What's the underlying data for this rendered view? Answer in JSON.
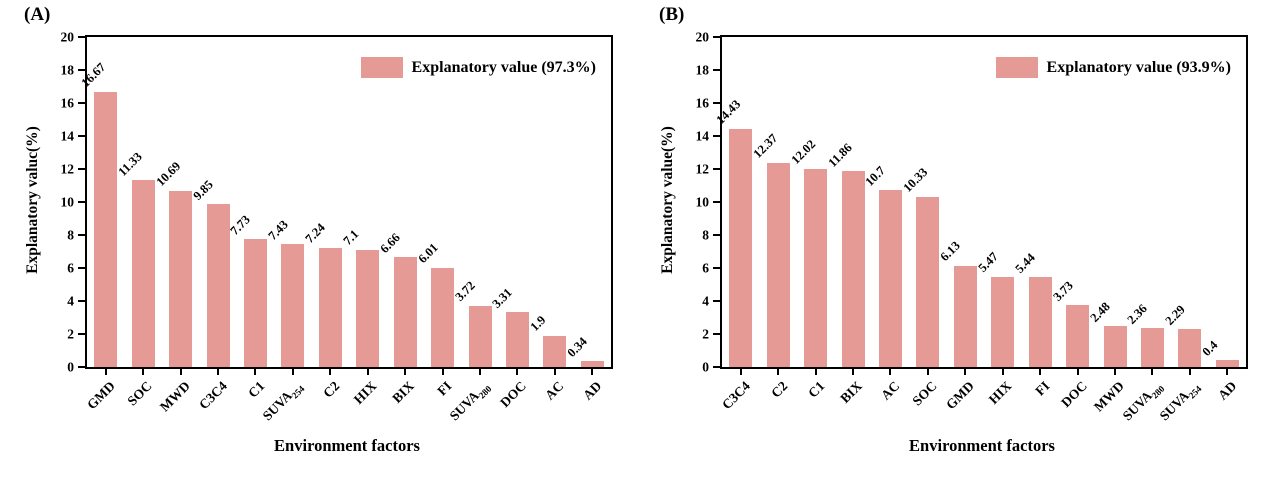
{
  "chart_data": [
    {
      "type": "bar",
      "panel_label": "(A)",
      "ylabel": "Explanatory valuc(%)",
      "xlabel": "Environment factors",
      "legend": "Explanatory value (97.3%)",
      "legend_position": "upper right",
      "categories": [
        "GMD",
        "SOC",
        "MWD",
        "C3C4",
        "C1",
        "SUVA_254",
        "C2",
        "HIX",
        "BIX",
        "FI",
        "SUVA_280",
        "DOC",
        "AC",
        "AD"
      ],
      "values": [
        16.67,
        11.33,
        10.69,
        9.85,
        7.73,
        7.43,
        7.24,
        7.1,
        6.66,
        6.01,
        3.72,
        3.31,
        1.9,
        0.34
      ],
      "ylim": [
        0,
        20
      ],
      "ytick_step": 2,
      "grid": false,
      "bar_color": "#E59A96",
      "axis_color": "#000000"
    },
    {
      "type": "bar",
      "panel_label": "(B)",
      "ylabel": "Explanatory value(%)",
      "xlabel": "Environment factors",
      "legend": "Explanatory value (93.9%)",
      "legend_position": "upper right",
      "categories": [
        "C3C4",
        "C2",
        "C1",
        "BIX",
        "AC",
        "SOC",
        "GMD",
        "HIX",
        "FI",
        "DOC",
        "MWD",
        "SUVA_280",
        "SUVA_254",
        "AD"
      ],
      "values": [
        14.43,
        12.37,
        12.02,
        11.86,
        10.7,
        10.33,
        6.13,
        5.47,
        5.44,
        3.73,
        2.48,
        2.36,
        2.29,
        0.4
      ],
      "ylim": [
        0,
        20
      ],
      "ytick_step": 2,
      "grid": false,
      "bar_color": "#E59A96",
      "axis_color": "#000000"
    }
  ]
}
